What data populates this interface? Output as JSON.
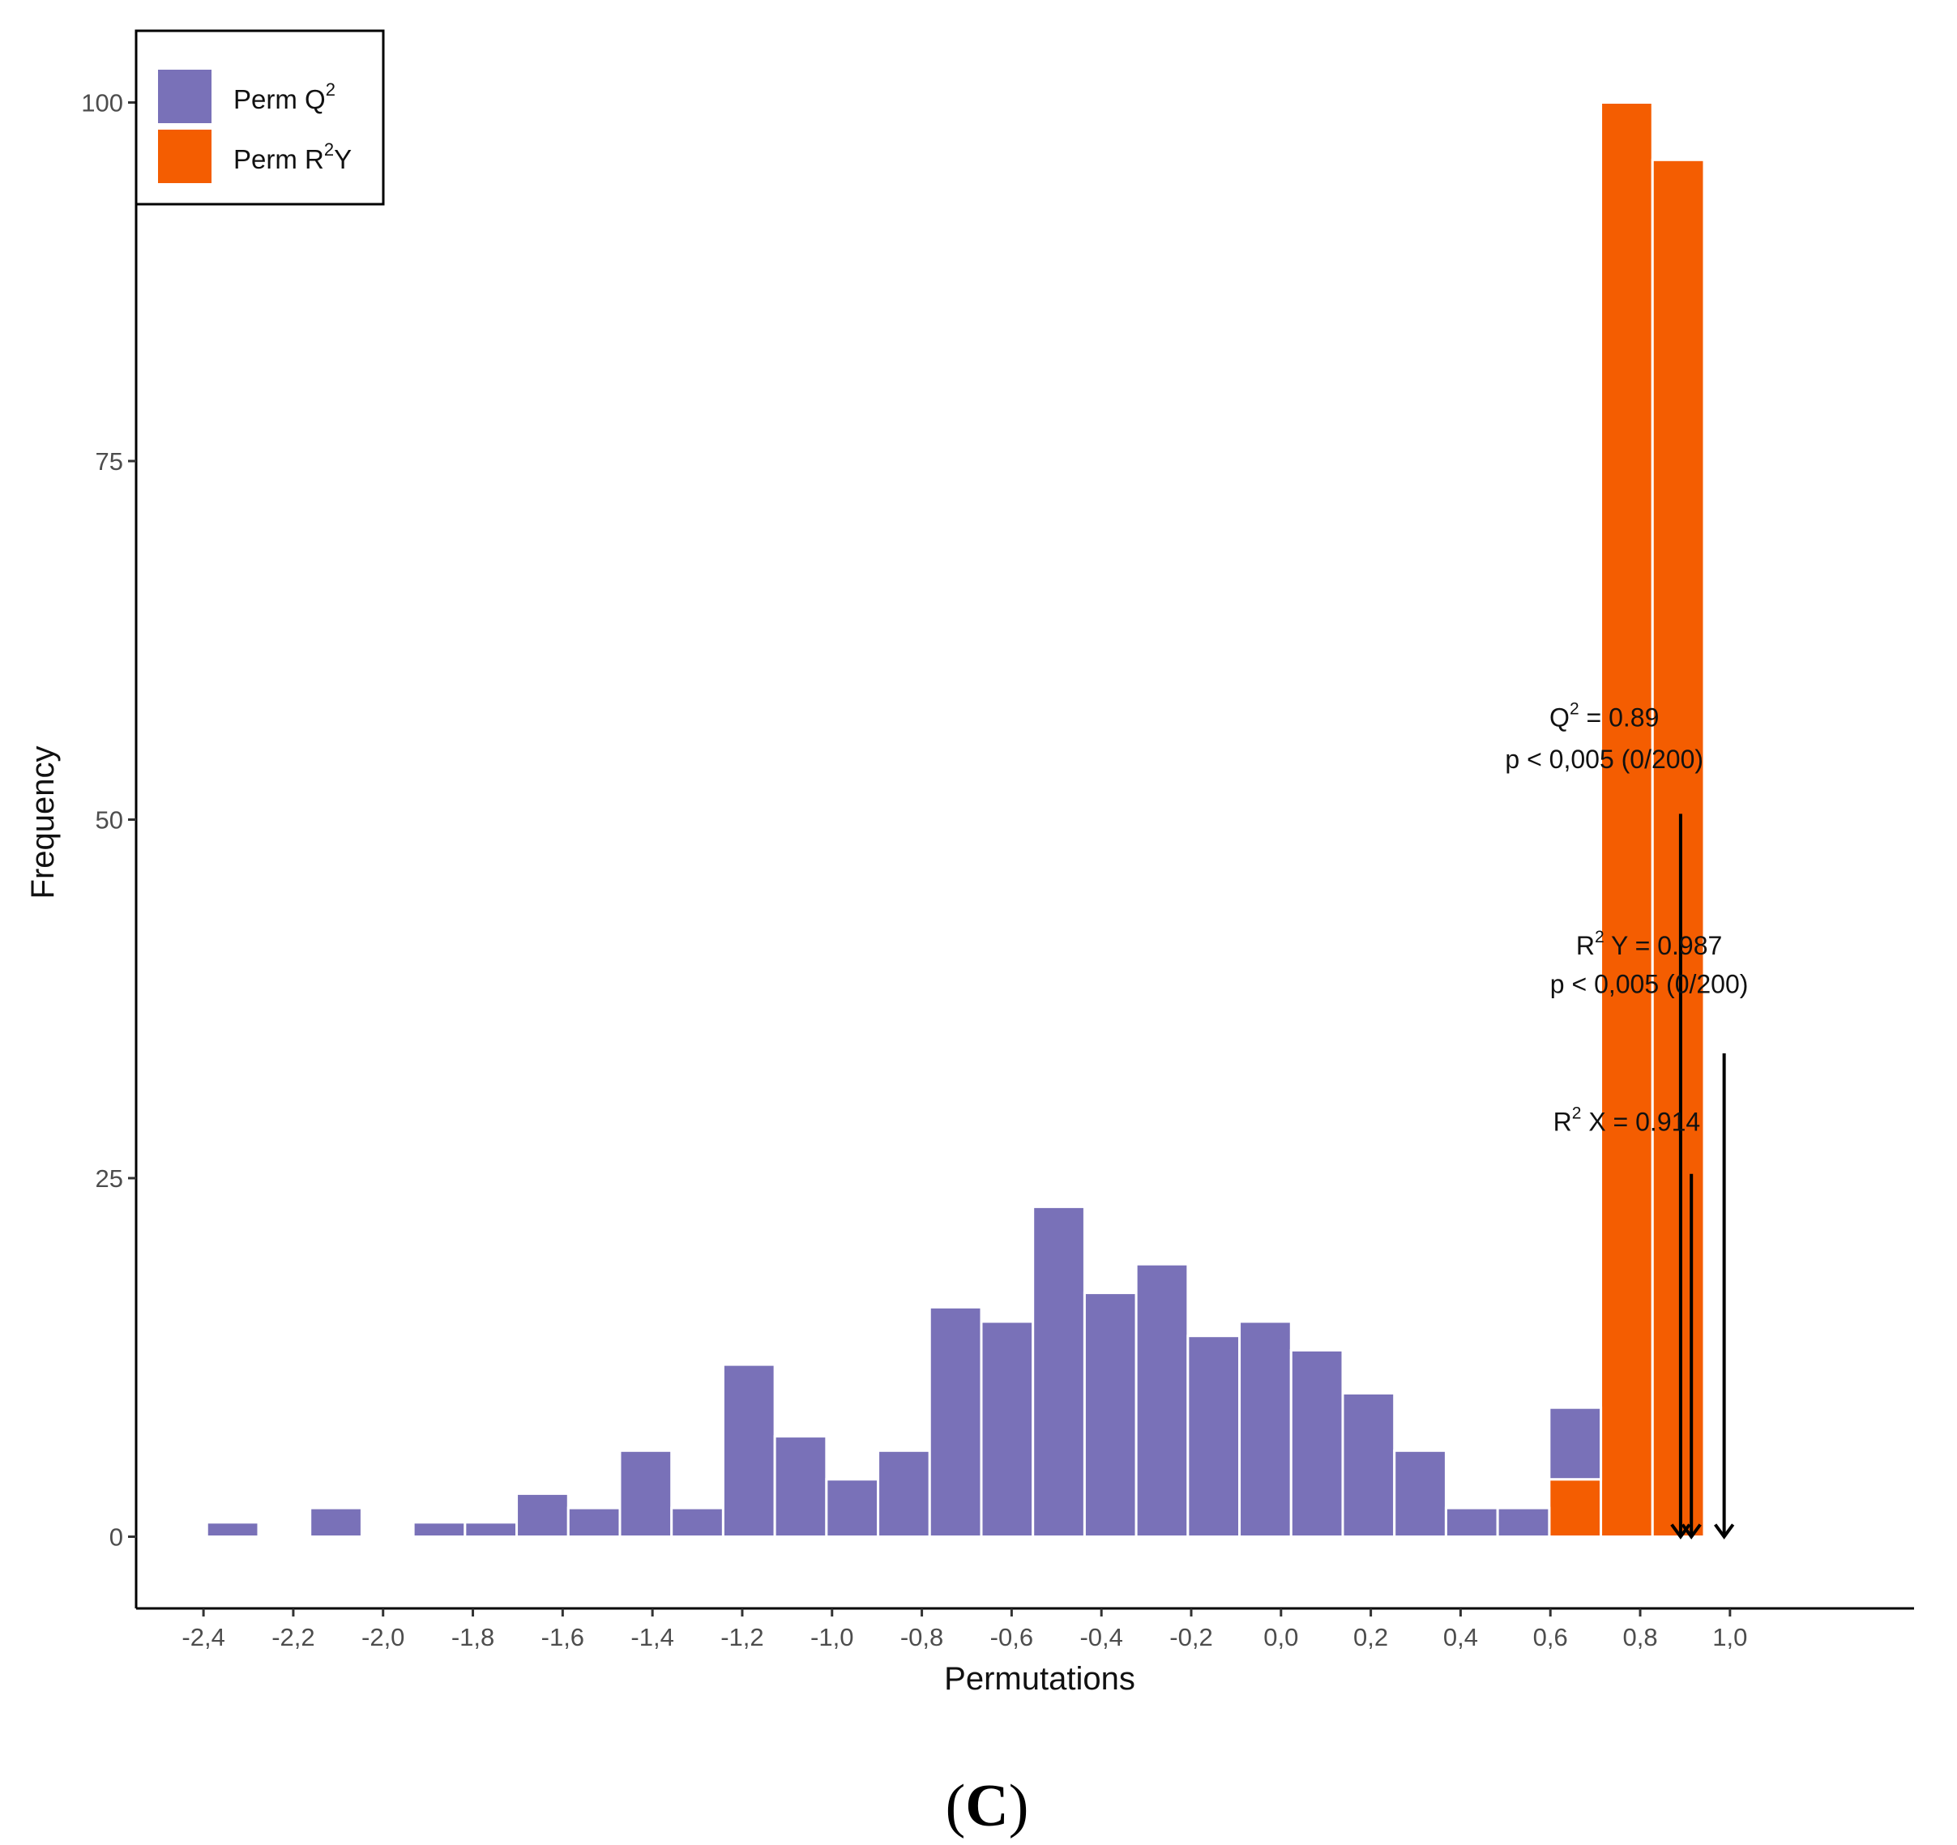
{
  "chart_data": {
    "type": "bar",
    "title": "",
    "xlabel": "Permutations",
    "ylabel": "Frequency",
    "panel_label_open": "(",
    "panel_label_letter": "C",
    "panel_label_close": ")",
    "xlim": [
      -2.55,
      1.41
    ],
    "ylim": [
      -5,
      105
    ],
    "bin_width": 0.115,
    "x_ticks": [
      -2.4,
      -2.2,
      -2.0,
      -1.8,
      -1.6,
      -1.4,
      -1.2,
      -1.0,
      -0.8,
      -0.6,
      -0.4,
      -0.2,
      0.0,
      0.2,
      0.4,
      0.6,
      0.8,
      1.0
    ],
    "x_tick_labels": [
      "-2,4",
      "-2,2",
      "-2,0",
      "-1,8",
      "-1,6",
      "-1,4",
      "-1,2",
      "-1,0",
      "-0,8",
      "-0,6",
      "-0,4",
      "-0,2",
      "0,0",
      "0,2",
      "0,4",
      "0,6",
      "0,8",
      "1,0"
    ],
    "y_ticks": [
      0,
      25,
      50,
      75,
      100
    ],
    "y_tick_labels": [
      "0",
      "25",
      "50",
      "75",
      "100"
    ],
    "series": [
      {
        "name": "Perm Q2",
        "color": "#7971b8",
        "bin_centers": [
          -2.335,
          -2.105,
          -1.875,
          -1.76,
          -1.645,
          -1.53,
          -1.415,
          -1.3,
          -1.185,
          -1.07,
          -0.955,
          -0.84,
          -0.725,
          -0.61,
          -0.495,
          -0.38,
          -0.265,
          -0.15,
          -0.035,
          0.08,
          0.195,
          0.31,
          0.425,
          0.54,
          0.655
        ],
        "values": [
          1,
          2,
          1,
          1,
          3,
          2,
          6,
          2,
          12,
          7,
          4,
          6,
          16,
          15,
          23,
          17,
          19,
          14,
          15,
          13,
          10,
          6,
          2,
          2,
          5
        ]
      },
      {
        "name": "Perm R2Y",
        "color": "#f45d01",
        "bin_centers": [
          0.655,
          0.77,
          0.885
        ],
        "values": [
          4,
          100,
          96
        ]
      }
    ],
    "legend": {
      "position": "top-left",
      "entries": [
        {
          "label_base": "Perm Q",
          "label_sup": "2",
          "label_tail": "",
          "color": "#7971b8"
        },
        {
          "label_base": "Perm R",
          "label_sup": "2",
          "label_tail": "Y",
          "color": "#f45d01"
        }
      ]
    },
    "annotations": [
      {
        "id": "q2",
        "arrow_x": 0.89,
        "arrow_top": 50.4,
        "line1_base": "Q",
        "line1_sup": "2",
        "line1_tail": " = 0.89",
        "line2": "p < 0,005 (0/200)",
        "text_x": 0.72,
        "line1_y": 56.5,
        "line2_y": 53.6
      },
      {
        "id": "r2x",
        "arrow_x": 0.914,
        "arrow_top": 25.3,
        "line1_base": "R",
        "line1_sup": "2",
        "line1_tail": " X = 0.914",
        "line2": "",
        "text_x": 0.77,
        "line1_y": 28.3,
        "line2_y": null
      },
      {
        "id": "r2y",
        "arrow_x": 0.987,
        "arrow_top": 33.7,
        "line1_base": "R",
        "line1_sup": "2",
        "line1_tail": " Y = 0.987",
        "line2": "p < 0,005 (0/200)",
        "text_x": 0.82,
        "line1_y": 40.6,
        "line2_y": 37.9
      }
    ]
  }
}
